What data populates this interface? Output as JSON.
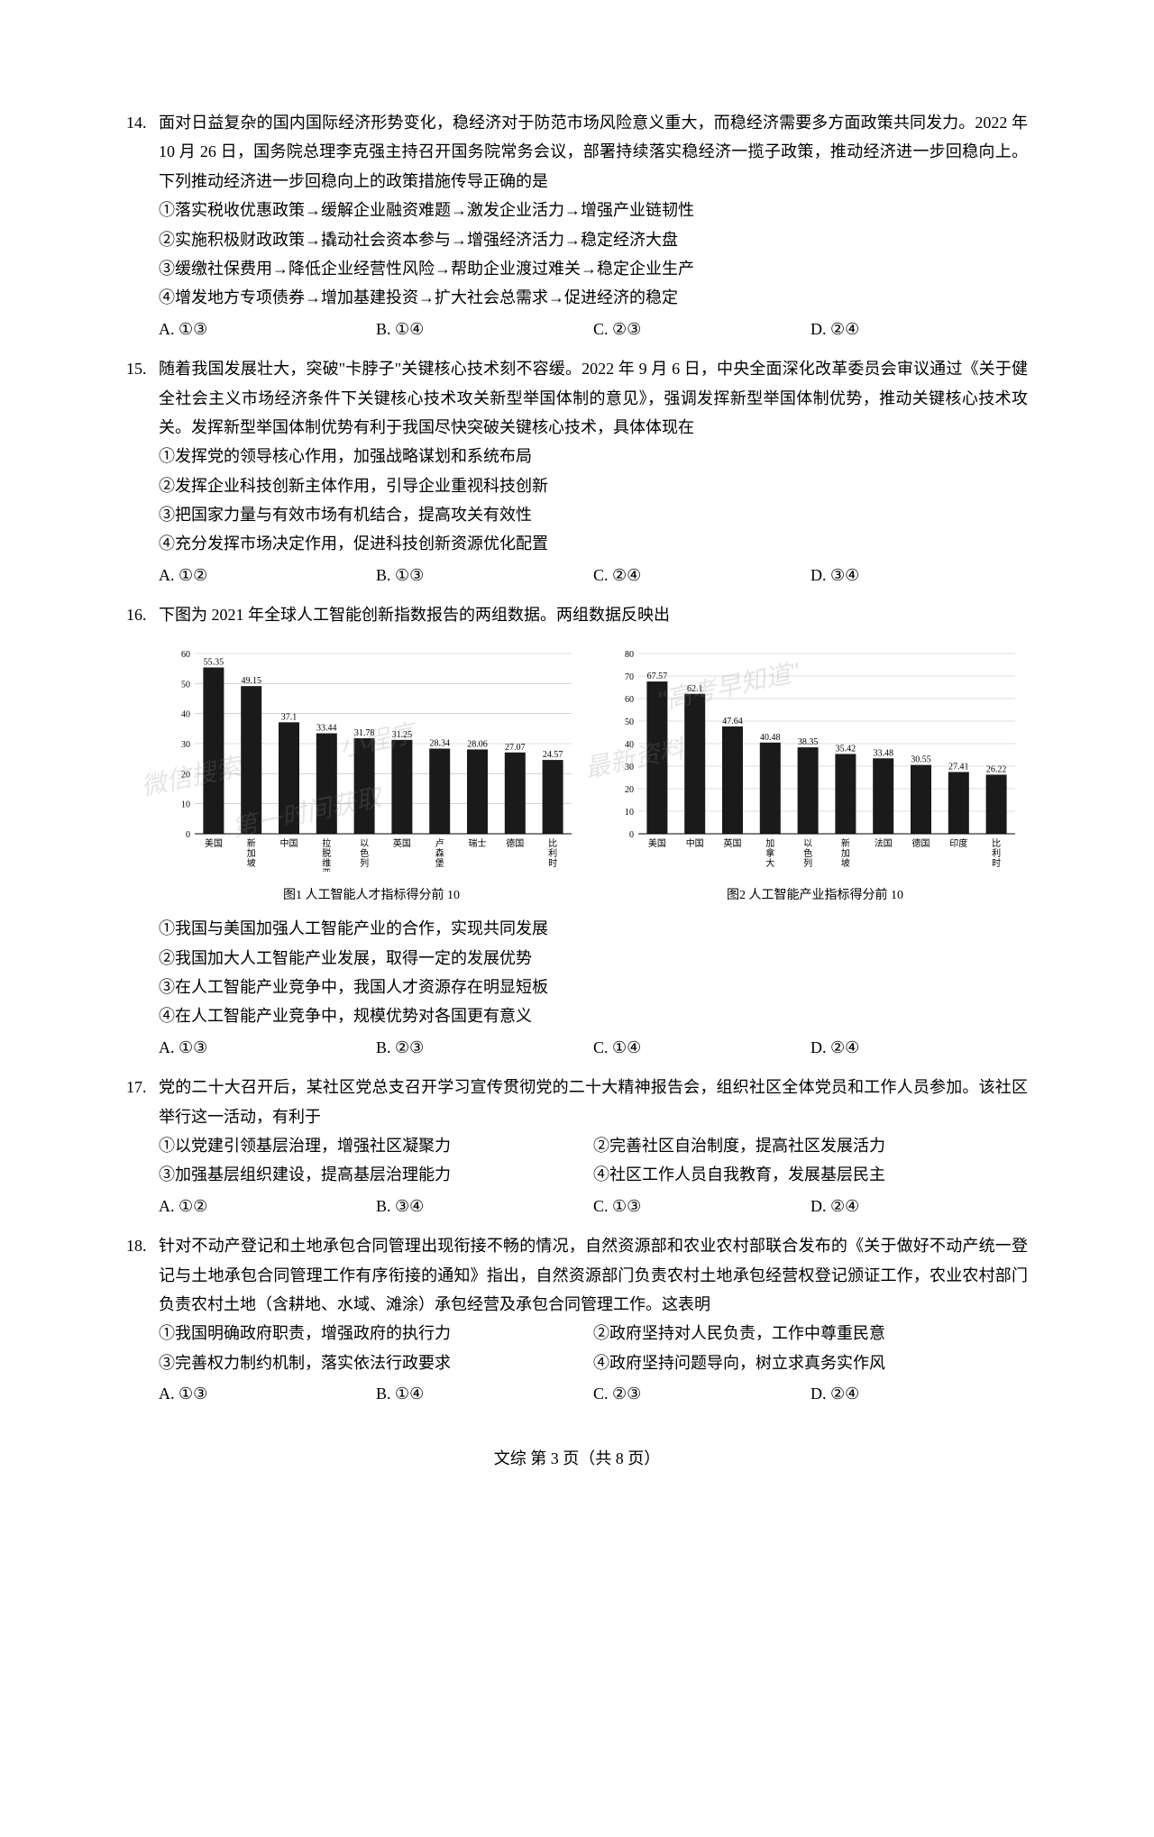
{
  "q14": {
    "num": "14.",
    "stem": "面对日益复杂的国内国际经济形势变化，稳经济对于防范市场风险意义重大，而稳经济需要多方面政策共同发力。2022 年 10 月 26 日，国务院总理李克强主持召开国务院常务会议，部署持续落实稳经济一揽子政策，推动经济进一步回稳向上。下列推动经济进一步回稳向上的政策措施传导正确的是",
    "lines": [
      "①落实税收优惠政策→缓解企业融资难题→激发企业活力→增强产业链韧性",
      "②实施积极财政政策→撬动社会资本参与→增强经济活力→稳定经济大盘",
      "③缓缴社保费用→降低企业经营性风险→帮助企业渡过难关→稳定企业生产",
      "④增发地方专项债券→增加基建投资→扩大社会总需求→促进经济的稳定"
    ],
    "opts": [
      "A. ①③",
      "B. ①④",
      "C. ②③",
      "D. ②④"
    ]
  },
  "q15": {
    "num": "15.",
    "stem": "随着我国发展壮大，突破\"卡脖子\"关键核心技术刻不容缓。2022 年 9 月 6 日，中央全面深化改革委员会审议通过《关于健全社会主义市场经济条件下关键核心技术攻关新型举国体制的意见》，强调发挥新型举国体制优势，推动关键核心技术攻关。发挥新型举国体制优势有利于我国尽快突破关键核心技术，具体体现在",
    "lines": [
      "①发挥党的领导核心作用，加强战略谋划和系统布局",
      "②发挥企业科技创新主体作用，引导企业重视科技创新",
      "③把国家力量与有效市场有机结合，提高攻关有效性",
      "④充分发挥市场决定作用，促进科技创新资源优化配置"
    ],
    "opts": [
      "A. ①②",
      "B. ①③",
      "C. ②④",
      "D. ③④"
    ]
  },
  "q16": {
    "num": "16.",
    "stem": "下图为 2021 年全球人工智能创新指数报告的两组数据。两组数据反映出",
    "chart1": {
      "type": "bar",
      "ymax": 60,
      "ytick_step": 10,
      "bar_color": "#1a1a1a",
      "background_color": "#ffffff",
      "grid_color": "#bbbbbb",
      "label_fontsize": 10,
      "value_fontsize": 10,
      "categories": [
        "美国",
        "新加坡",
        "中国",
        "拉脱维亚",
        "以色列",
        "英国",
        "卢森堡",
        "瑞士",
        "德国",
        "比利时"
      ],
      "values": [
        55.35,
        49.15,
        37.1,
        33.44,
        31.78,
        31.25,
        28.34,
        28.06,
        27.07,
        24.57
      ],
      "caption": "图1  人工智能人才指标得分前 10"
    },
    "chart2": {
      "type": "bar",
      "ymax": 80,
      "ytick_step": 10,
      "bar_color": "#1a1a1a",
      "background_color": "#ffffff",
      "grid_color": "#bbbbbb",
      "label_fontsize": 10,
      "value_fontsize": 10,
      "categories": [
        "美国",
        "中国",
        "英国",
        "加拿大",
        "以色列",
        "新加坡",
        "法国",
        "德国",
        "印度",
        "比利时"
      ],
      "values": [
        67.57,
        62.1,
        47.64,
        40.48,
        38.35,
        35.42,
        33.48,
        30.55,
        27.41,
        26.22
      ],
      "caption": "图2  人工智能产业指标得分前 10"
    },
    "lines": [
      "①我国与美国加强人工智能产业的合作，实现共同发展",
      "②我国加大人工智能产业发展，取得一定的发展优势",
      "③在人工智能产业竞争中，我国人才资源存在明显短板",
      "④在人工智能产业竞争中，规模优势对各国更有意义"
    ],
    "opts": [
      "A. ①③",
      "B. ②③",
      "C. ①④",
      "D. ②④"
    ],
    "watermarks": [
      "微信搜索",
      "小程序",
      "\"高考早知道\"",
      "第一时间获取",
      "最新资料"
    ]
  },
  "q17": {
    "num": "17.",
    "stem": "党的二十大召开后，某社区党总支召开学习宣传贯彻党的二十大精神报告会，组织社区全体党员和工作人员参加。该社区举行这一活动，有利于",
    "lines2col": [
      "①以党建引领基层治理，增强社区凝聚力",
      "②完善社区自治制度，提高社区发展活力",
      "③加强基层组织建设，提高基层治理能力",
      "④社区工作人员自我教育，发展基层民主"
    ],
    "opts": [
      "A. ①②",
      "B. ③④",
      "C. ①③",
      "D. ②④"
    ]
  },
  "q18": {
    "num": "18.",
    "stem": "针对不动产登记和土地承包合同管理出现衔接不畅的情况，自然资源部和农业农村部联合发布的《关于做好不动产统一登记与土地承包合同管理工作有序衔接的通知》指出，自然资源部门负责农村土地承包经营权登记颁证工作，农业农村部门负责农村土地（含耕地、水域、滩涂）承包经营及承包合同管理工作。这表明",
    "lines2col": [
      "①我国明确政府职责，增强政府的执行力",
      "②政府坚持对人民负责，工作中尊重民意",
      "③完善权力制约机制，落实依法行政要求",
      "④政府坚持问题导向，树立求真务实作风"
    ],
    "opts": [
      "A. ①③",
      "B. ①④",
      "C. ②③",
      "D. ②④"
    ]
  },
  "footer": "文综  第 3 页（共 8 页）"
}
